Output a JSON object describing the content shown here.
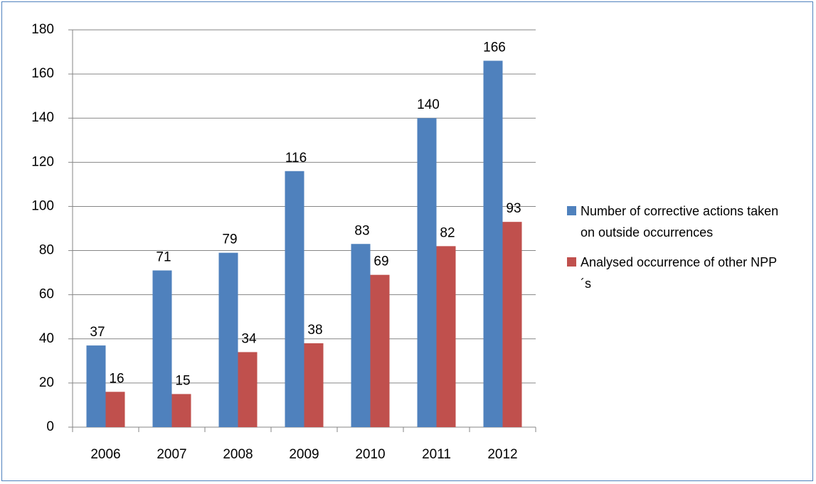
{
  "chart_data": {
    "type": "bar",
    "categories": [
      "2006",
      "2007",
      "2008",
      "2009",
      "2010",
      "2011",
      "2012"
    ],
    "series": [
      {
        "name": "Number of corrective actions taken on outside occurrences",
        "color": "#4f81bd",
        "values": [
          37,
          71,
          79,
          116,
          83,
          140,
          166
        ]
      },
      {
        "name": "Analysed occurrence of other NPP´s",
        "color": "#c0504d",
        "values": [
          16,
          15,
          34,
          38,
          69,
          82,
          93
        ]
      }
    ],
    "ylim": [
      0,
      180
    ],
    "yticks": [
      0,
      20,
      40,
      60,
      80,
      100,
      120,
      140,
      160,
      180
    ],
    "grid": true,
    "legend": "right"
  }
}
